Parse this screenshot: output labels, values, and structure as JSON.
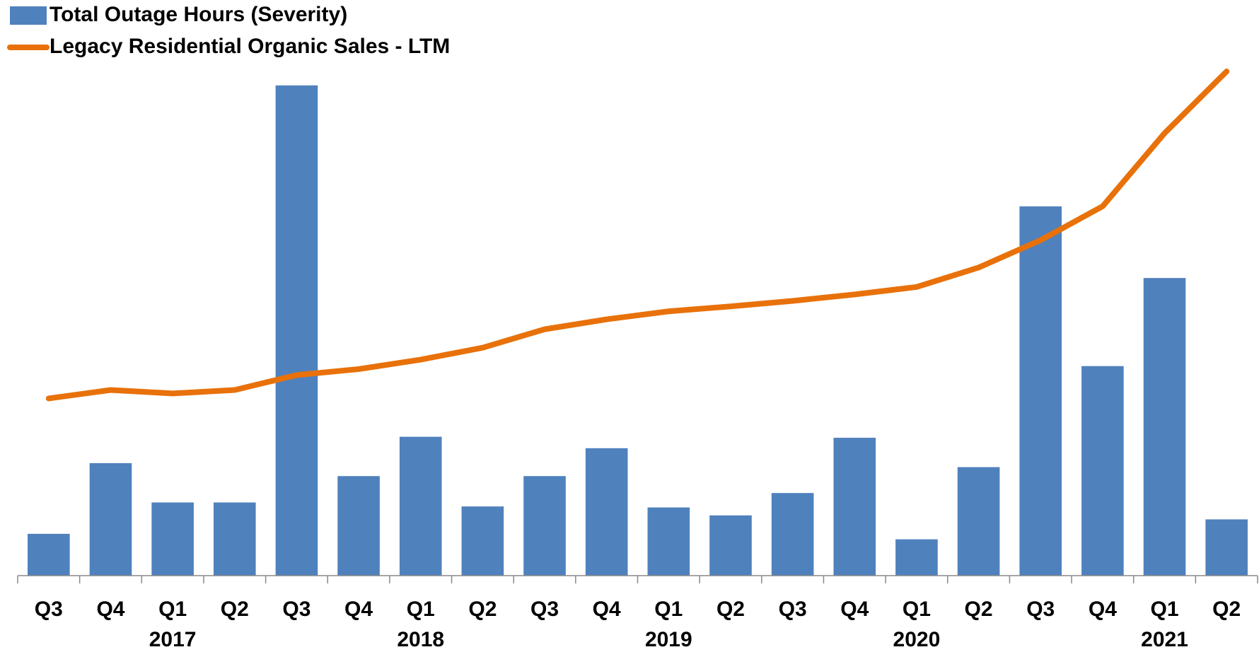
{
  "chart_data": {
    "type": "bar",
    "categories": [
      "Q3",
      "Q4",
      "Q1",
      "Q2",
      "Q3",
      "Q4",
      "Q1",
      "Q2",
      "Q3",
      "Q4",
      "Q1",
      "Q2",
      "Q3",
      "Q4",
      "Q1",
      "Q2",
      "Q3",
      "Q4",
      "Q1",
      "Q2"
    ],
    "year_labels": [
      null,
      null,
      "2017",
      null,
      null,
      null,
      "2018",
      null,
      null,
      null,
      "2019",
      null,
      null,
      null,
      "2020",
      null,
      null,
      null,
      "2021",
      null
    ],
    "series": [
      {
        "name": "Total Outage Hours (Severity)",
        "type": "bar",
        "color": "#4f81bd",
        "values": [
          8.4,
          22.6,
          14.7,
          14.7,
          98.5,
          20,
          27.9,
          13.9,
          20,
          25.6,
          13.7,
          12.1,
          16.6,
          27.7,
          7.3,
          21.8,
          74.2,
          42.1,
          59.8,
          11.3
        ]
      },
      {
        "name": "Legacy Residential Organic Sales - LTM",
        "type": "line",
        "color": "#e8710a",
        "values": [
          35.6,
          37.3,
          36.6,
          37.3,
          40.3,
          41.5,
          43.4,
          45.8,
          49.5,
          51.5,
          53.1,
          54.1,
          55.2,
          56.5,
          58.0,
          61.9,
          67.4,
          74.2,
          88.9,
          101.3
        ]
      }
    ],
    "ylim": [
      0,
      105
    ],
    "legend": "top-left"
  }
}
